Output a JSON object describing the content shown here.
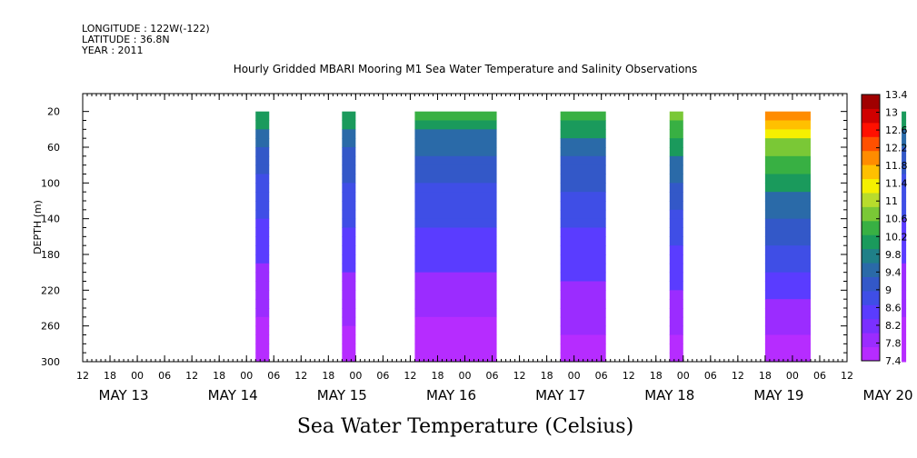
{
  "header": {
    "longitude": "LONGITUDE : 122W(-122)",
    "latitude": "LATITUDE : 36.8N",
    "year": "YEAR : 2011"
  },
  "chart_data": {
    "type": "heatmap",
    "title": "Hourly Gridded MBARI Mooring M1 Sea Water Temperature and Salinity Observations",
    "xlabel": "Sea Water Temperature (Celsius)",
    "ylabel": "DEPTH (m)",
    "ylim": [
      0,
      300
    ],
    "y_ticks": [
      20,
      60,
      100,
      140,
      180,
      220,
      260,
      300
    ],
    "x_range_hours_from_may13": [
      -12,
      156
    ],
    "x_hour_ticks": [
      "12",
      "18",
      "00",
      "06",
      "12",
      "18",
      "00",
      "06",
      "12",
      "18",
      "00",
      "06",
      "12",
      "18",
      "00",
      "06",
      "12",
      "18",
      "00",
      "06",
      "12",
      "18",
      "00",
      "06",
      "12",
      "18",
      "00",
      "06",
      "12"
    ],
    "x_dates": [
      "MAY 13",
      "MAY 14",
      "MAY 15",
      "MAY 16",
      "MAY 17",
      "MAY 18",
      "MAY 19",
      "MAY 20"
    ],
    "colorbar": {
      "levels": [
        7.4,
        7.8,
        8.2,
        8.6,
        9,
        9.4,
        9.8,
        10.2,
        10.6,
        11,
        11.4,
        11.8,
        12.2,
        12.6,
        13,
        13.4
      ],
      "labels": [
        "7.4",
        "7.8",
        "8.2",
        "8.6",
        "9",
        "9.4",
        "9.8",
        "10.2",
        "10.6",
        "11",
        "11.4",
        "11.8",
        "12.2",
        "12.6",
        "13",
        "13.4"
      ],
      "colors": [
        "#b62cff",
        "#9b2cff",
        "#7a30ff",
        "#5a3cff",
        "#3f4ee6",
        "#3358c8",
        "#2a6aa8",
        "#1f8088",
        "#1a9a5c",
        "#38b043",
        "#7ac836",
        "#b8dc2c",
        "#f5f000",
        "#ffc000",
        "#ff8c00",
        "#ff5000",
        "#ff1000",
        "#d00000",
        "#a00000"
      ],
      "colors_note": "visible colorbar gradient order, bottom to top"
    },
    "data_segments": [
      {
        "start": "May 14 02:00",
        "end": "May 14 05:00",
        "start_h": 26,
        "end_h": 29,
        "surface_c": 10.4,
        "bottom_c": 7.5
      },
      {
        "start": "May 14 21:00",
        "end": "May 15 00:00",
        "start_h": 45,
        "end_h": 48,
        "surface_c": 10.4,
        "bottom_c": 7.6
      },
      {
        "start": "May 15 13:00",
        "end": "May 16 07:00",
        "start_h": 61,
        "end_h": 79,
        "surface_c": 10.6,
        "bottom_c": 7.5
      },
      {
        "start": "May 16 21:00",
        "end": "May 17 07:00",
        "start_h": 93,
        "end_h": 103,
        "surface_c": 10.6,
        "bottom_c": 7.6
      },
      {
        "start": "May 17 21:00",
        "end": "May 18 00:00",
        "start_h": 117,
        "end_h": 120,
        "surface_c": 11.2,
        "bottom_c": 7.6
      },
      {
        "start": "May 18 18:00",
        "end": "May 19 04:00",
        "start_h": 138,
        "end_h": 148,
        "surface_c": 12.6,
        "bottom_c": 7.5
      },
      {
        "start": "May 20 00:00",
        "end": "May 20 01:00",
        "start_h": 168,
        "end_h": 169,
        "surface_c": 10.4,
        "bottom_c": 7.5
      }
    ]
  }
}
